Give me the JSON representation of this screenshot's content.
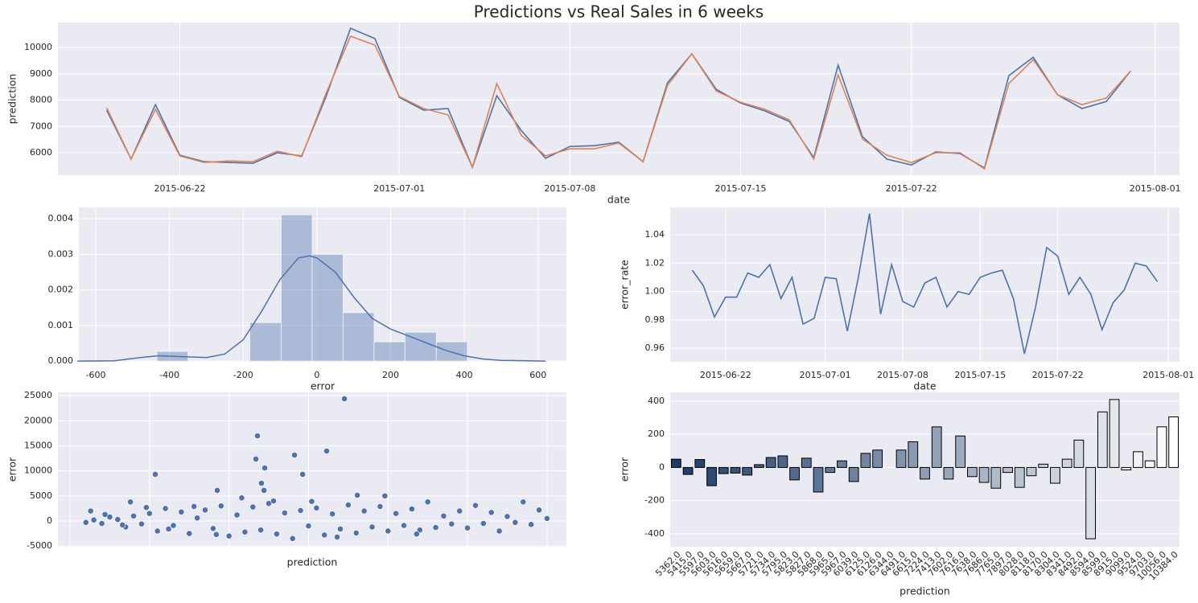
{
  "chart_data": [
    {
      "type": "line",
      "title": "Predictions vs Real Sales in 6 weeks",
      "x_label": "date",
      "y_label": "prediction",
      "x": [
        "2015-06-19",
        "2015-06-20",
        "2015-06-21",
        "2015-06-22",
        "2015-06-23",
        "2015-06-24",
        "2015-06-25",
        "2015-06-26",
        "2015-06-27",
        "2015-06-28",
        "2015-06-29",
        "2015-06-30",
        "2015-07-01",
        "2015-07-02",
        "2015-07-03",
        "2015-07-04",
        "2015-07-05",
        "2015-07-06",
        "2015-07-07",
        "2015-07-08",
        "2015-07-09",
        "2015-07-10",
        "2015-07-11",
        "2015-07-12",
        "2015-07-13",
        "2015-07-14",
        "2015-07-15",
        "2015-07-16",
        "2015-07-17",
        "2015-07-18",
        "2015-07-19",
        "2015-07-20",
        "2015-07-21",
        "2015-07-22",
        "2015-07-23",
        "2015-07-24",
        "2015-07-25",
        "2015-07-26",
        "2015-07-27",
        "2015-07-28",
        "2015-07-29",
        "2015-07-30",
        "2015-07-31"
      ],
      "series": [
        {
          "name": "prediction",
          "color": "#4c72b0",
          "values": [
            7620,
            5760,
            7830,
            5910,
            5660,
            5630,
            5600,
            6000,
            5880,
            8140,
            10730,
            10340,
            8110,
            7620,
            7680,
            5450,
            8170,
            6850,
            5790,
            6240,
            6270,
            6400,
            5660,
            8660,
            9760,
            8410,
            7890,
            7590,
            7190,
            5820,
            9330,
            6610,
            5760,
            5540,
            6030,
            5970,
            5420,
            8930,
            9630,
            8200,
            7680,
            7950,
            9110
          ]
        },
        {
          "name": "sales",
          "color": "#dd8452",
          "values": [
            7710,
            5760,
            7650,
            5880,
            5630,
            5690,
            5660,
            6060,
            5850,
            8260,
            10430,
            10090,
            8140,
            7680,
            7440,
            5450,
            8630,
            6670,
            5880,
            6150,
            6150,
            6370,
            5660,
            8560,
            9760,
            8350,
            7920,
            7650,
            7250,
            5760,
            8960,
            6520,
            5910,
            5630,
            6000,
            6000,
            5390,
            8630,
            9540,
            8200,
            7830,
            8080,
            9110
          ]
        }
      ],
      "xlim": [
        "2015-06-17",
        "2015-08-02"
      ],
      "xticks": [
        "2015-06-22",
        "2015-07-01",
        "2015-07-08",
        "2015-07-15",
        "2015-07-22",
        "2015-08-01"
      ],
      "ylim": [
        5145,
        10950
      ],
      "yticks": [
        6000,
        7000,
        8000,
        9000,
        10000
      ],
      "grid": true
    },
    {
      "type": "histogram",
      "x_label": "error",
      "bins": [
        -434,
        -350,
        -266,
        -182,
        -97,
        -13,
        71,
        155,
        239,
        324,
        408
      ],
      "counts": [
        0.00027,
        0,
        0,
        0.00108,
        0.00411,
        0.003,
        0.00136,
        0.00054,
        0.00081,
        0.00054
      ],
      "color": "#4c72b0",
      "alpha": 0.4,
      "kde": {
        "x": [
          -650,
          -550,
          -480,
          -430,
          -380,
          -300,
          -250,
          -200,
          -150,
          -100,
          -50,
          -20,
          0,
          50,
          100,
          150,
          200,
          250,
          300,
          350,
          400,
          450,
          500,
          620
        ],
        "y": [
          0,
          1e-05,
          0.0001,
          0.00015,
          0.00013,
          0.0001,
          0.0002,
          0.0006,
          0.0014,
          0.0023,
          0.0029,
          0.00296,
          0.0029,
          0.0025,
          0.0018,
          0.0012,
          0.0009,
          0.0007,
          0.0005,
          0.0003,
          0.00015,
          6e-05,
          2e-05,
          0
        ]
      },
      "xlim": [
        -646,
        677
      ],
      "xticks": [
        -600,
        -400,
        -200,
        0,
        200,
        400,
        600
      ],
      "ylim": [
        -2e-05,
        0.00432
      ],
      "yticks": [
        {
          "value": 0,
          "label": "0.000"
        },
        0.001,
        0.002,
        0.003,
        0.004
      ],
      "grid": true
    },
    {
      "type": "line",
      "x_label": "date",
      "y_label": "error_rate",
      "x": [
        "2015-06-19",
        "2015-06-20",
        "2015-06-21",
        "2015-06-22",
        "2015-06-23",
        "2015-06-24",
        "2015-06-25",
        "2015-06-26",
        "2015-06-27",
        "2015-06-28",
        "2015-06-29",
        "2015-06-30",
        "2015-07-01",
        "2015-07-02",
        "2015-07-03",
        "2015-07-04",
        "2015-07-05",
        "2015-07-06",
        "2015-07-07",
        "2015-07-08",
        "2015-07-09",
        "2015-07-10",
        "2015-07-11",
        "2015-07-12",
        "2015-07-13",
        "2015-07-14",
        "2015-07-15",
        "2015-07-16",
        "2015-07-17",
        "2015-07-18",
        "2015-07-19",
        "2015-07-20",
        "2015-07-21",
        "2015-07-22",
        "2015-07-23",
        "2015-07-24",
        "2015-07-25",
        "2015-07-26",
        "2015-07-27",
        "2015-07-28",
        "2015-07-29",
        "2015-07-30",
        "2015-07-31"
      ],
      "series": [
        {
          "name": "error_rate",
          "color": "#4c72b0",
          "values": [
            1.015,
            1.004,
            0.982,
            0.996,
            0.996,
            1.013,
            1.01,
            1.019,
            0.995,
            1.01,
            0.977,
            0.981,
            1.01,
            1.009,
            0.972,
            1.01,
            1.055,
            0.984,
            1.019,
            0.993,
            0.989,
            1.006,
            1.01,
            0.989,
            1.0,
            0.998,
            1.01,
            1.013,
            1.015,
            0.995,
            0.956,
            0.989,
            1.031,
            1.025,
            0.998,
            1.01,
            0.998,
            0.973,
            0.992,
            1.001,
            1.02,
            1.018,
            1.007
          ]
        }
      ],
      "xlim": [
        "2015-06-17",
        "2015-08-02"
      ],
      "xticks": [
        "2015-06-22",
        "2015-07-01",
        "2015-07-08",
        "2015-07-15",
        "2015-07-22",
        "2015-08-01"
      ],
      "ylim": [
        0.9504,
        1.0593
      ],
      "yticks": [
        0.96,
        0.98,
        {
          "value": 1,
          "label": "1.00"
        },
        1.02,
        1.04
      ],
      "grid": true
    },
    {
      "type": "scatter",
      "x_label": "prediction",
      "y_label": "error",
      "color": "#4c72b0",
      "x": [
        1000,
        1500,
        2000,
        2500,
        3000,
        3500,
        4000,
        4500,
        5000,
        5500,
        6000,
        6500,
        7000,
        7500,
        8000,
        8500,
        9000,
        9500,
        10000,
        10500,
        11000,
        11500,
        12000,
        12500,
        13000,
        13500,
        14000,
        14500,
        15000,
        15500,
        16000,
        16500,
        17000,
        17500,
        18000,
        18500,
        19000,
        19500,
        20000,
        20500,
        21000,
        21500,
        22000,
        22500,
        23000,
        23500,
        24000,
        24500,
        25000,
        25500,
        26000,
        26500,
        27000,
        27500,
        28000,
        28500,
        29000,
        29500,
        30000,
        2200,
        3300,
        4800,
        6200,
        7800,
        9200,
        10800,
        12800,
        15200,
        16800,
        19800,
        21800,
        3800,
        1300,
        5365,
        9260,
        11790,
        11690,
        12040,
        12250,
        12200,
        14120,
        14630,
        16140,
        17260,
        18070
      ],
      "values": [
        -300,
        200,
        -500,
        800,
        300,
        -1200,
        1000,
        -600,
        1500,
        -2000,
        2500,
        -900,
        1800,
        -2500,
        600,
        2200,
        -1500,
        3000,
        -3000,
        1200,
        -2200,
        2800,
        -1800,
        3500,
        -2600,
        1600,
        -3500,
        2100,
        -1000,
        2600,
        -2800,
        1400,
        -1600,
        3200,
        -2400,
        2000,
        -1200,
        2900,
        -2000,
        1500,
        -900,
        2400,
        -1800,
        3800,
        -1300,
        1000,
        -600,
        2000,
        -1400,
        3100,
        -500,
        1700,
        -2000,
        900,
        -300,
        3800,
        -700,
        2200,
        500,
        1300,
        -800,
        2700,
        -1600,
        2900,
        -2700,
        4600,
        4000,
        3900,
        -3200,
        5000,
        -2600,
        3800,
        2000,
        9310,
        6100,
        17010,
        12360,
        7540,
        10590,
        6100,
        13160,
        9310,
        13960,
        24400,
        5140
      ],
      "xlim": [
        -760,
        31220
      ],
      "xticks": [
        0,
        5000,
        10000,
        15000,
        20000,
        25000,
        30000
      ],
      "xtick_labels": false,
      "ylim": [
        -5140,
        25680
      ],
      "yticks": [
        -5000,
        0,
        5000,
        10000,
        15000,
        20000,
        25000
      ],
      "grid": true
    },
    {
      "type": "bar",
      "x_label": "prediction",
      "y_label": "error",
      "categories": [
        "5362.0",
        "5415.0",
        "5597.0",
        "5603.0",
        "5616.0",
        "5659.0",
        "5667.0",
        "5721.0",
        "5734.0",
        "5795.0",
        "5823.0",
        "5827.0",
        "5868.0",
        "5965.0",
        "5967.0",
        "6039.0",
        "6125.0",
        "6126.0",
        "6344.0",
        "6491.0",
        "6615.0",
        "7224.0",
        "7413.0",
        "7602.0",
        "7616.0",
        "7638.0",
        "7686.0",
        "7765.0",
        "7897.0",
        "8028.0",
        "8118.0",
        "8170.0",
        "8304.0",
        "8341.0",
        "8492.0",
        "8594.0",
        "8599.0",
        "8915.0",
        "9099.0",
        "9524.0",
        "9703.0",
        "10056.0",
        "10384.0"
      ],
      "values": [
        50,
        -42,
        48,
        -110,
        -37,
        -34,
        -46,
        17,
        60,
        70,
        -75,
        56,
        -148,
        -30,
        40,
        -85,
        85,
        105,
        0,
        105,
        155,
        -70,
        245,
        -70,
        190,
        -55,
        -90,
        -125,
        -30,
        -120,
        -50,
        20,
        -95,
        50,
        165,
        -430,
        335,
        410,
        -15,
        95,
        40,
        245,
        305
      ],
      "color_range": [
        "#1b3c6a",
        "#ffffff"
      ],
      "edgecolor": "#000000",
      "ylim": [
        -478,
        453
      ],
      "yticks": [
        -400,
        -200,
        0,
        200,
        400
      ],
      "grid": true
    }
  ]
}
